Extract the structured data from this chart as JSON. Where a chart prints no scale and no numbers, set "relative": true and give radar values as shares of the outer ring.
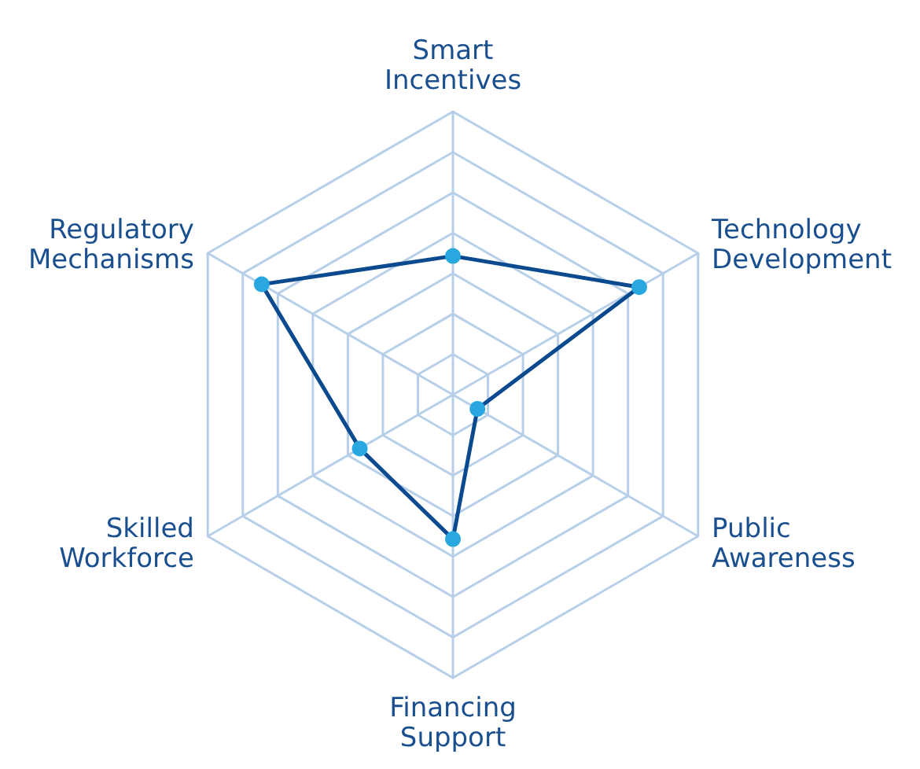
{
  "chart_data": {
    "type": "radar",
    "relative": true,
    "grid": true,
    "marker": "circle",
    "categories": [
      "Smart Incentives",
      "Technology Development",
      "Public Awareness",
      "Financing Support",
      "Skilled Workforce",
      "Regulatory Mechanisms"
    ],
    "series": [
      {
        "color": "#0b4a8f",
        "values": [
          0.49,
          0.76,
          0.1,
          0.51,
          0.38,
          0.78
        ]
      }
    ]
  }
}
